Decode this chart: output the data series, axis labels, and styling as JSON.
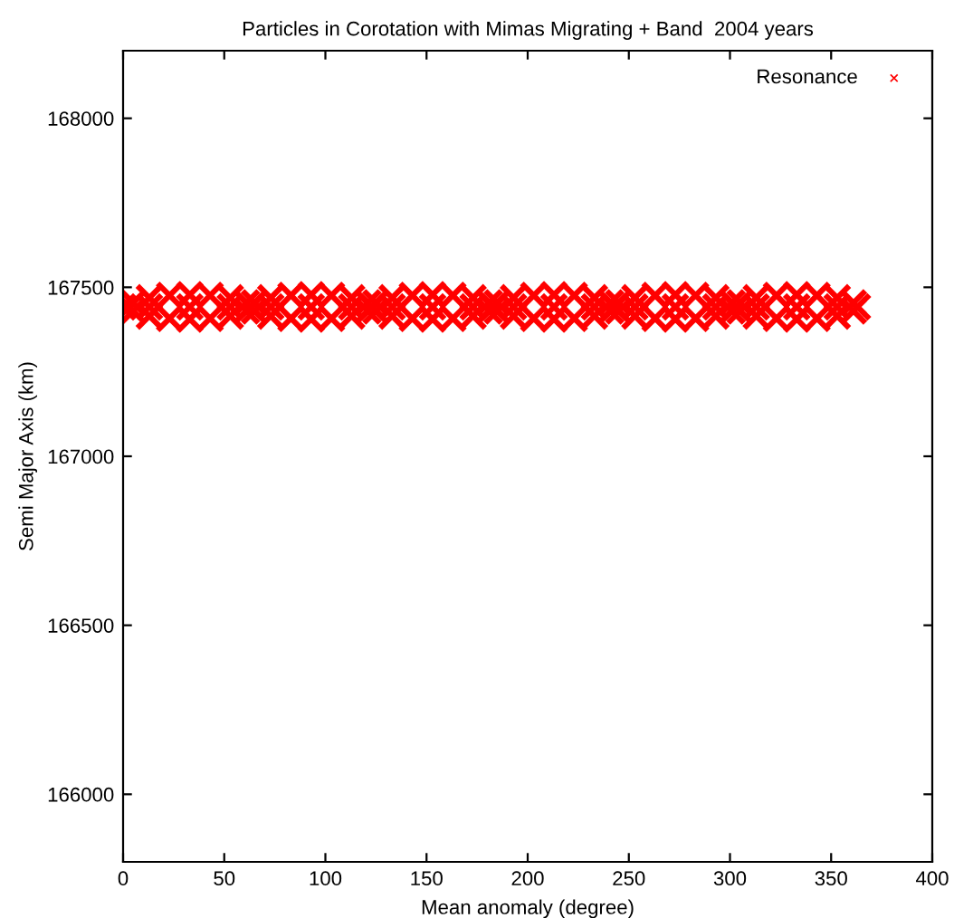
{
  "chart_data": {
    "type": "scatter",
    "title": "Particles in Corotation with Mimas Migrating + Band  2004 years",
    "xlabel": "Mean anomaly (degree)",
    "ylabel": "Semi Major Axis (km)",
    "xlim": [
      0,
      400
    ],
    "xticks": [
      0,
      50,
      100,
      150,
      200,
      250,
      300,
      350,
      400
    ],
    "ylim": [
      165800,
      168200
    ],
    "yticks": [
      166000,
      166500,
      167000,
      167500,
      168000
    ],
    "grid": false,
    "legend": "top right",
    "marker": "cross",
    "series": [
      {
        "name": "Resonance",
        "color": "#ff0000",
        "x": [
          0,
          3,
          5,
          5,
          13,
          13,
          13,
          23,
          23,
          33,
          33,
          33,
          43,
          43,
          53,
          53,
          53,
          61,
          61,
          63,
          65,
          65,
          73,
          73,
          73,
          83,
          83,
          93,
          93,
          93,
          103,
          103,
          113,
          113,
          113,
          121,
          121,
          123,
          125,
          125,
          133,
          133,
          133,
          143,
          143,
          153,
          153,
          153,
          163,
          163,
          173,
          173,
          173,
          181,
          181,
          183,
          185,
          185,
          193,
          193,
          193,
          203,
          203,
          213,
          213,
          213,
          223,
          223,
          233,
          233,
          233,
          241,
          241,
          243,
          245,
          245,
          253,
          253,
          253,
          263,
          263,
          273,
          273,
          273,
          283,
          283,
          293,
          293,
          293,
          301,
          301,
          303,
          305,
          305,
          313,
          313,
          313,
          323,
          323,
          333,
          333,
          333,
          343,
          343,
          353,
          353,
          353,
          361,
          361,
          363
        ],
        "values": [
          167442,
          167442,
          167454,
          167430,
          167469,
          167442,
          167415,
          167476,
          167408,
          167478,
          167442,
          167406,
          167476,
          167408,
          167469,
          167442,
          167415,
          167454,
          167430,
          167442,
          167454,
          167430,
          167469,
          167442,
          167415,
          167476,
          167408,
          167478,
          167442,
          167406,
          167476,
          167408,
          167469,
          167442,
          167415,
          167454,
          167430,
          167442,
          167454,
          167430,
          167469,
          167442,
          167415,
          167476,
          167408,
          167478,
          167442,
          167406,
          167476,
          167408,
          167469,
          167442,
          167415,
          167454,
          167430,
          167442,
          167454,
          167430,
          167469,
          167442,
          167415,
          167476,
          167408,
          167478,
          167442,
          167406,
          167476,
          167408,
          167469,
          167442,
          167415,
          167454,
          167430,
          167442,
          167454,
          167430,
          167469,
          167442,
          167415,
          167476,
          167408,
          167478,
          167442,
          167406,
          167476,
          167408,
          167469,
          167442,
          167415,
          167454,
          167430,
          167442,
          167454,
          167430,
          167469,
          167442,
          167415,
          167476,
          167408,
          167478,
          167442,
          167406,
          167476,
          167408,
          167469,
          167442,
          167415,
          167454,
          167430,
          167442
        ]
      }
    ]
  }
}
